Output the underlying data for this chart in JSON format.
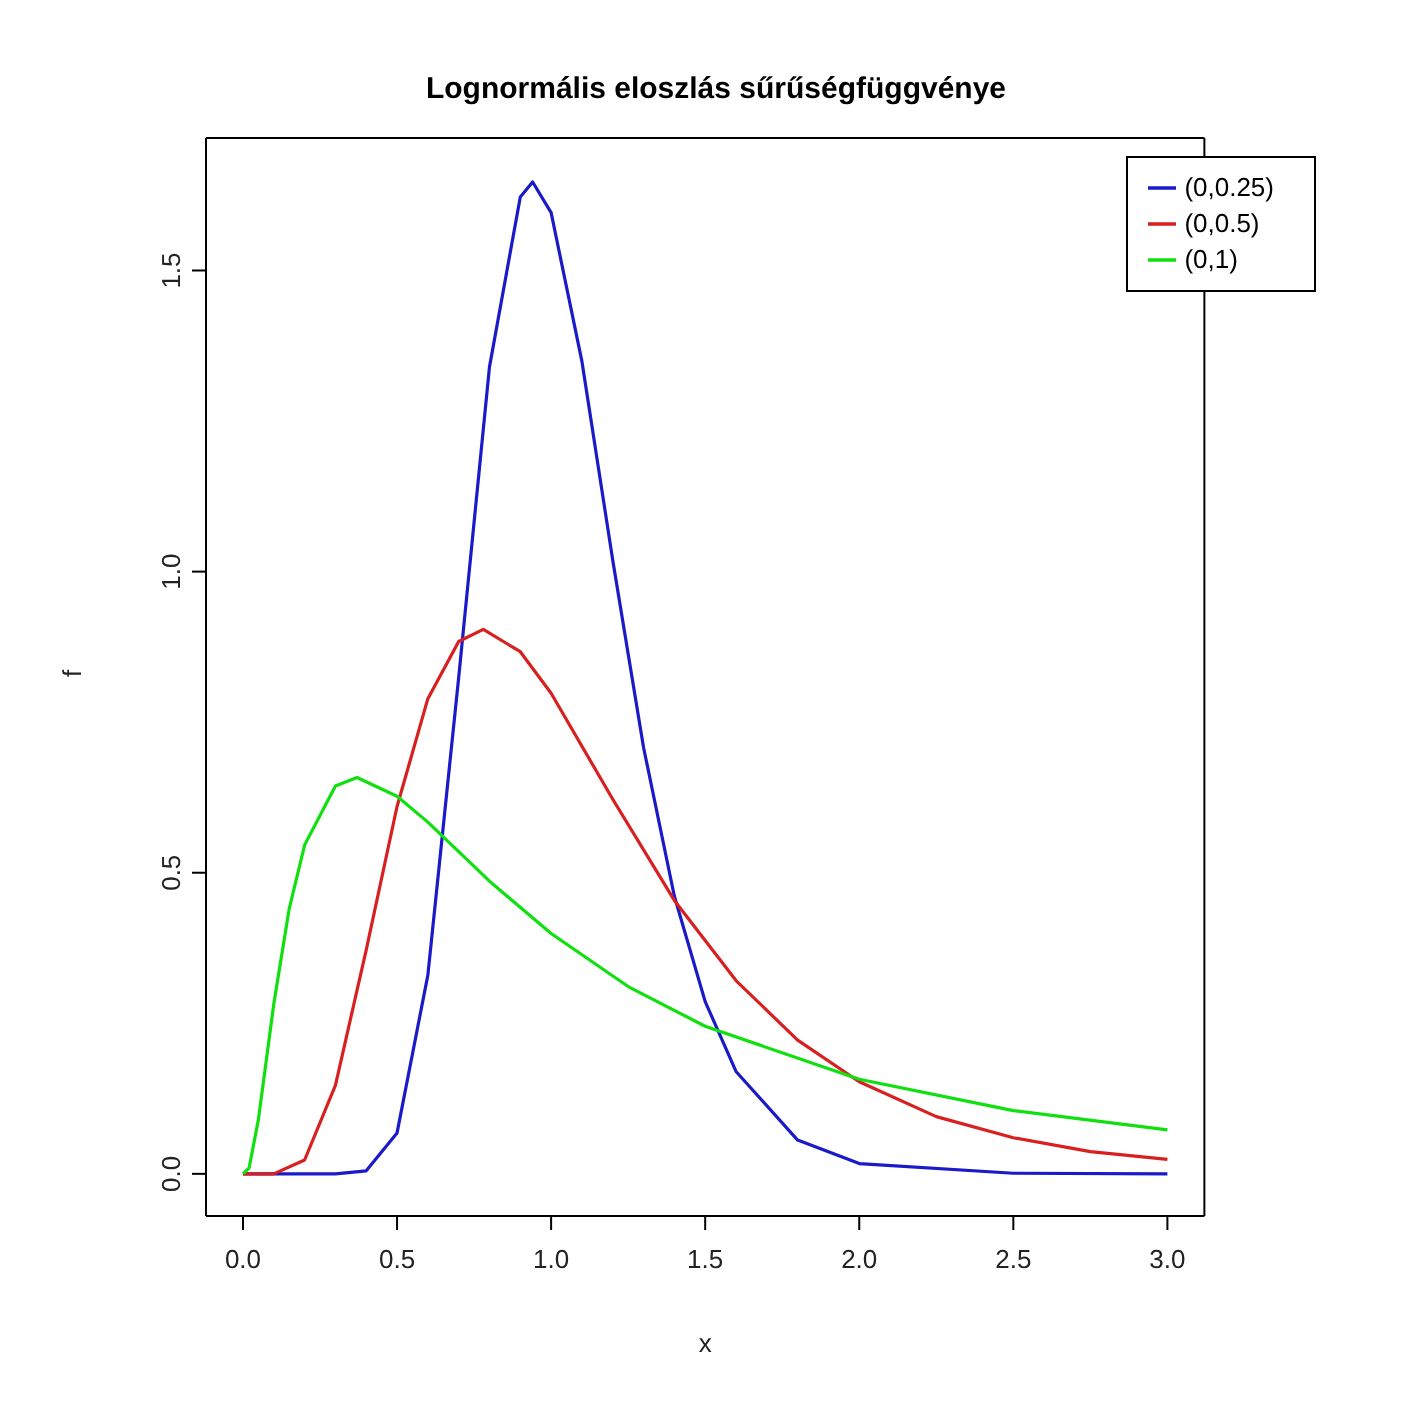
{
  "chart_data": {
    "type": "line",
    "title": "Lognormális eloszlás sűrűségfüggvénye",
    "xlabel": "x",
    "ylabel": "f",
    "series": [
      {
        "name": "(0,0.25)",
        "color": "#1a1ac8",
        "x": [
          0,
          0.3,
          0.4,
          0.5,
          0.6,
          0.7,
          0.8,
          0.9,
          0.94,
          1.0,
          1.1,
          1.2,
          1.3,
          1.4,
          1.5,
          1.6,
          1.8,
          2.0,
          2.5,
          3.0
        ],
        "values": [
          0,
          0,
          0.005,
          0.068,
          0.33,
          0.824,
          1.34,
          1.622,
          1.647,
          1.596,
          1.349,
          1.019,
          0.708,
          0.461,
          0.286,
          0.17,
          0.056,
          0.017,
          0.001,
          0
        ]
      },
      {
        "name": "(0,0.5)",
        "color": "#d82020",
        "x": [
          0,
          0.1,
          0.2,
          0.3,
          0.4,
          0.5,
          0.6,
          0.7,
          0.78,
          0.9,
          1.0,
          1.2,
          1.4,
          1.6,
          1.8,
          2.0,
          2.25,
          2.5,
          2.75,
          3.0
        ],
        "values": [
          0,
          0,
          0.023,
          0.147,
          0.372,
          0.61,
          0.789,
          0.884,
          0.904,
          0.867,
          0.798,
          0.622,
          0.454,
          0.321,
          0.222,
          0.153,
          0.095,
          0.06,
          0.037,
          0.024
        ]
      },
      {
        "name": "(0,1)",
        "color": "#10e010",
        "x": [
          0,
          0.02,
          0.05,
          0.1,
          0.15,
          0.2,
          0.3,
          0.37,
          0.5,
          0.6,
          0.8,
          1.0,
          1.25,
          1.5,
          2.0,
          2.5,
          3.0
        ],
        "values": [
          0,
          0.01,
          0.09,
          0.282,
          0.44,
          0.546,
          0.644,
          0.658,
          0.627,
          0.584,
          0.486,
          0.399,
          0.311,
          0.245,
          0.157,
          0.105,
          0.073
        ]
      }
    ],
    "xlim": [
      -0.12,
      3.12
    ],
    "xticks": [
      {
        "value": 0,
        "label": "0.0"
      },
      {
        "value": 0.5,
        "label": "0.5"
      },
      {
        "value": 1,
        "label": "1.0"
      },
      {
        "value": 1.5,
        "label": "1.5"
      },
      {
        "value": 2,
        "label": "2.0"
      },
      {
        "value": 2.5,
        "label": "2.5"
      },
      {
        "value": 3,
        "label": "3.0"
      }
    ],
    "ylim": [
      -0.07,
      1.72
    ],
    "yticks": [
      {
        "value": 0,
        "label": "0.0"
      },
      {
        "value": 0.5,
        "label": "0.5"
      },
      {
        "value": 1,
        "label": "1.0"
      },
      {
        "value": 1.5,
        "label": "1.5"
      }
    ],
    "grid": false,
    "legend": "top right",
    "marker": "none",
    "line_style": "solid"
  }
}
